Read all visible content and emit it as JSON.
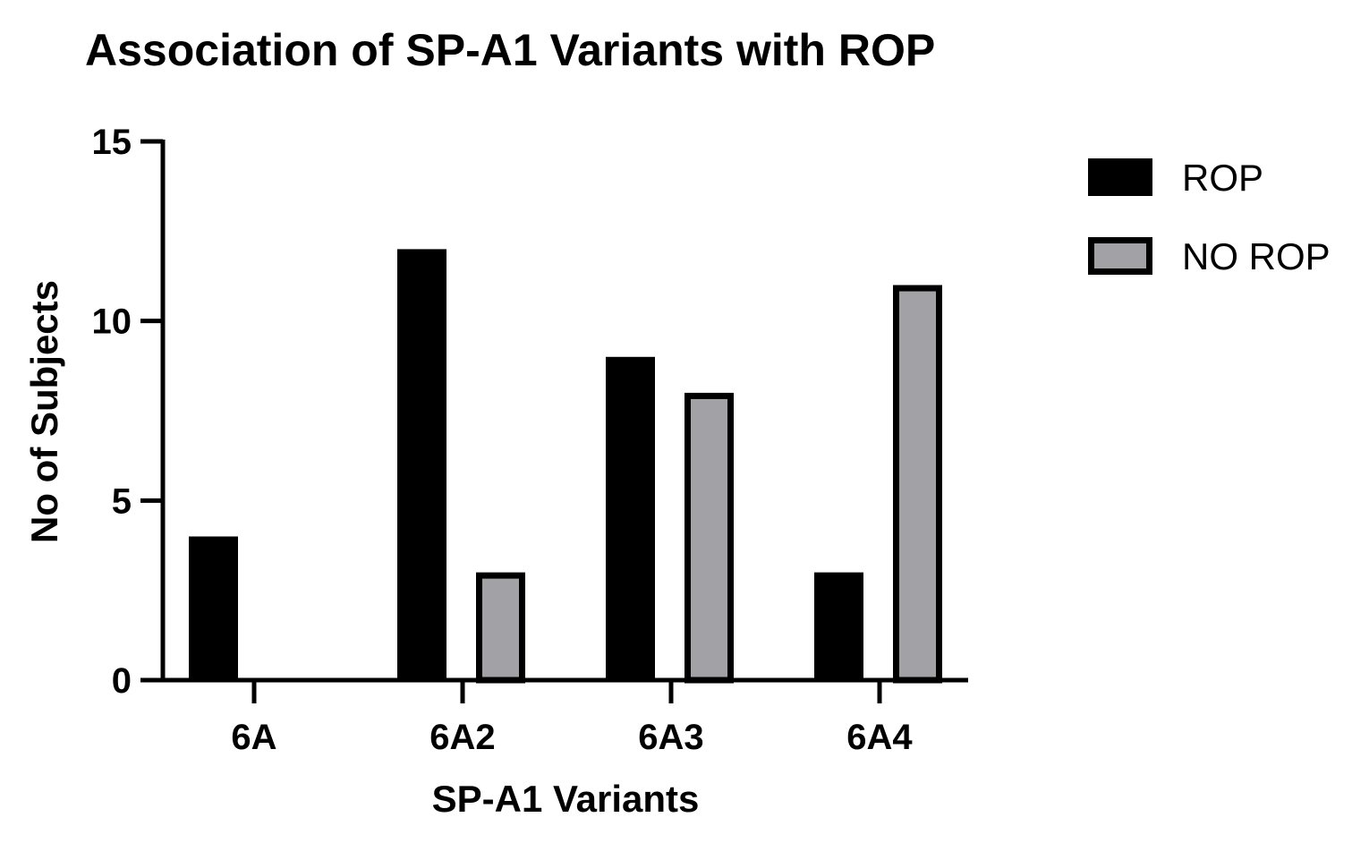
{
  "chart_data": {
    "type": "bar",
    "title": "Association of SP-A1 Variants with ROP",
    "xlabel": "SP-A1 Variants",
    "ylabel": "No of Subjects",
    "categories": [
      "6A",
      "6A2",
      "6A3",
      "6A4"
    ],
    "series": [
      {
        "name": "ROP",
        "values": [
          4,
          12,
          9,
          3
        ],
        "color": "#000000"
      },
      {
        "name": "NO ROP",
        "values": [
          0,
          3,
          8,
          11
        ],
        "color": "#a2a1a6",
        "stroke": "#000000"
      }
    ],
    "ylim": [
      0,
      15
    ],
    "yticks": [
      "0",
      "5",
      "10",
      "15"
    ],
    "grid": false,
    "legend_position": "top-right"
  }
}
